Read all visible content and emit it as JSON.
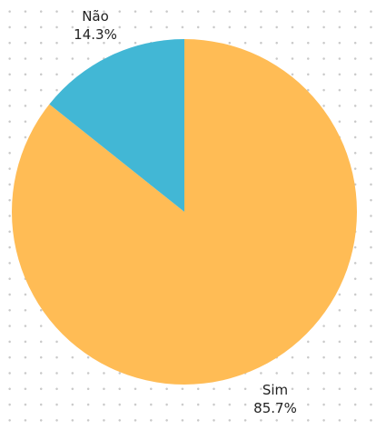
{
  "chart_data": {
    "type": "pie",
    "slices": [
      {
        "label": "Sim",
        "percent_label": "85.7%",
        "value": 85.7,
        "color": "#FFBC55"
      },
      {
        "label": "Não",
        "percent_label": "14.3%",
        "value": 14.3,
        "color": "#42B7D5"
      }
    ],
    "start": "top",
    "direction": "clockwise",
    "legend": "none"
  }
}
